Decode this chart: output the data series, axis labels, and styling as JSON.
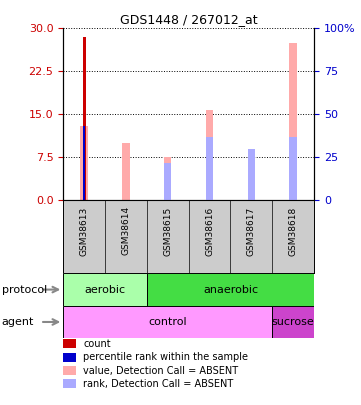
{
  "title": "GDS1448 / 267012_at",
  "samples": [
    "GSM38613",
    "GSM38614",
    "GSM38615",
    "GSM38616",
    "GSM38617",
    "GSM38618"
  ],
  "left_ylim": [
    0,
    30
  ],
  "right_ylim": [
    0,
    100
  ],
  "left_yticks": [
    0,
    7.5,
    15,
    22.5,
    30
  ],
  "right_yticks": [
    0,
    25,
    50,
    75,
    100
  ],
  "right_yticklabels": [
    "0",
    "25",
    "50",
    "75",
    "100%"
  ],
  "count_values": [
    28.5,
    0,
    0,
    0,
    0,
    0
  ],
  "count_color": "#cc0000",
  "rank_values": [
    13.0,
    0,
    0,
    0,
    0,
    0
  ],
  "rank_color": "#0000cc",
  "pink_bar_values": [
    13.0,
    10.0,
    7.5,
    15.8,
    9.0,
    27.5
  ],
  "pink_bar_color": "#ffaaaa",
  "blue_bar_values": [
    0,
    0,
    6.5,
    11.0,
    9.0,
    11.0
  ],
  "blue_bar_color": "#aaaaff",
  "protocol_aerobic_range": [
    0,
    2
  ],
  "protocol_anaerobic_range": [
    2,
    6
  ],
  "protocol_aerobic_color": "#aaffaa",
  "protocol_anaerobic_color": "#44dd44",
  "agent_control_range": [
    0,
    5
  ],
  "agent_sucrose_range": [
    5,
    6
  ],
  "agent_control_color": "#ff99ff",
  "agent_sucrose_color": "#cc44cc",
  "legend_items": [
    {
      "color": "#cc0000",
      "label": "count"
    },
    {
      "color": "#0000cc",
      "label": "percentile rank within the sample"
    },
    {
      "color": "#ffaaaa",
      "label": "value, Detection Call = ABSENT"
    },
    {
      "color": "#aaaaff",
      "label": "rank, Detection Call = ABSENT"
    }
  ],
  "background_color": "#ffffff",
  "left_tick_color": "#cc0000",
  "right_tick_color": "#0000cc",
  "xlab_bg": "#cccccc",
  "bar_width": 0.18,
  "count_bar_width": 0.07,
  "rank_bar_width": 0.045
}
